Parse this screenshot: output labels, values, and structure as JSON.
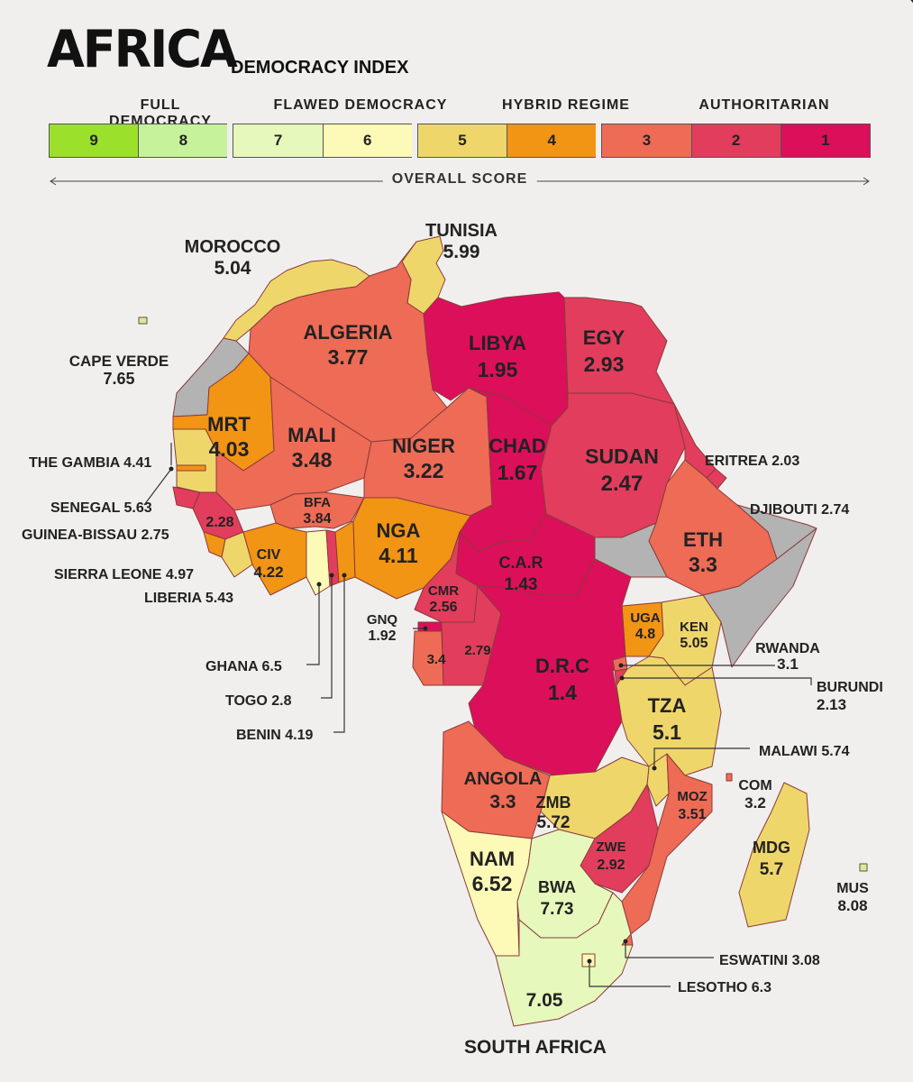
{
  "title": "AFRICA",
  "subtitle": "DEMOCRACY INDEX",
  "legend": {
    "categories": [
      "FULL DEMOCRACY",
      "FLAWED DEMOCRACY",
      "HYBRID REGIME",
      "AUTHORITARIAN"
    ],
    "scale": [
      {
        "label": "9",
        "color": "#9be02a"
      },
      {
        "label": "8",
        "color": "#c6f29c"
      },
      {
        "label": "7",
        "color": "#e6f8bb"
      },
      {
        "label": "6",
        "color": "#fdfab7"
      },
      {
        "label": "5",
        "color": "#efd66b"
      },
      {
        "label": "4",
        "color": "#f29414"
      },
      {
        "label": "3",
        "color": "#ee6b56"
      },
      {
        "label": "2",
        "color": "#e23d5c"
      },
      {
        "label": "1",
        "color": "#dc0f5a"
      }
    ],
    "axis_label": "OVERALL SCORE"
  },
  "countries": [
    {
      "name": "MOROCCO",
      "score": "5.04",
      "color": "#efd66b"
    },
    {
      "name": "TUNISIA",
      "score": "5.99",
      "color": "#efd66b"
    },
    {
      "name": "ALGERIA",
      "score": "3.77",
      "color": "#ee6b56"
    },
    {
      "name": "LIBYA",
      "score": "1.95",
      "color": "#dc0f5a"
    },
    {
      "name": "EGY",
      "score": "2.93",
      "color": "#e23d5c"
    },
    {
      "name": "CAPE VERDE",
      "score": "7.65",
      "color": "#c6f29c"
    },
    {
      "name": "MRT",
      "score": "4.03",
      "color": "#f29414"
    },
    {
      "name": "MALI",
      "score": "3.48",
      "color": "#ee6b56"
    },
    {
      "name": "NIGER",
      "score": "3.22",
      "color": "#ee6b56"
    },
    {
      "name": "CHAD",
      "score": "1.67",
      "color": "#dc0f5a"
    },
    {
      "name": "SUDAN",
      "score": "2.47",
      "color": "#e23d5c"
    },
    {
      "name": "ERITREA",
      "score": "2.03",
      "color": "#e23d5c"
    },
    {
      "name": "THE GAMBIA",
      "score": "4.41",
      "color": "#f29414"
    },
    {
      "name": "SENEGAL",
      "score": "5.63",
      "color": "#efd66b"
    },
    {
      "name": "GUINEA-BISSAU",
      "score": "2.75",
      "color": "#e23d5c"
    },
    {
      "name": "",
      "score": "2.28",
      "color": "#e23d5c"
    },
    {
      "name": "BFA",
      "score": "3.84",
      "color": "#ee6b56"
    },
    {
      "name": "DJIBOUTI",
      "score": "2.74",
      "color": "#e23d5c"
    },
    {
      "name": "SIERRA LEONE",
      "score": "4.97",
      "color": "#f29414"
    },
    {
      "name": "LIBERIA",
      "score": "5.43",
      "color": "#efd66b"
    },
    {
      "name": "CIV",
      "score": "4.22",
      "color": "#f29414"
    },
    {
      "name": "NGA",
      "score": "4.11",
      "color": "#f29414"
    },
    {
      "name": "ETH",
      "score": "3.3",
      "color": "#ee6b56"
    },
    {
      "name": "C.A.R",
      "score": "1.43",
      "color": "#dc0f5a"
    },
    {
      "name": "CMR",
      "score": "2.56",
      "color": "#e23d5c"
    },
    {
      "name": "GNQ",
      "score": "1.92",
      "color": "#dc0f5a"
    },
    {
      "name": "UGA",
      "score": "4.8",
      "color": "#f29414"
    },
    {
      "name": "KEN",
      "score": "5.05",
      "color": "#efd66b"
    },
    {
      "name": "",
      "score": "3.4",
      "color": "#ee6b56"
    },
    {
      "name": "",
      "score": "2.79",
      "color": "#e23d5c"
    },
    {
      "name": "D.R.C",
      "score": "1.4",
      "color": "#dc0f5a"
    },
    {
      "name": "RWANDA",
      "score": "3.1",
      "color": "#ee6b56"
    },
    {
      "name": "GHANA",
      "score": "6.5",
      "color": "#fdfab7"
    },
    {
      "name": "BURUNDI",
      "score": "2.13",
      "color": "#e23d5c"
    },
    {
      "name": "TOGO",
      "score": "2.8",
      "color": "#e23d5c"
    },
    {
      "name": "TZA",
      "score": "5.1",
      "color": "#efd66b"
    },
    {
      "name": "BENIN",
      "score": "4.19",
      "color": "#f29414"
    },
    {
      "name": "MALAWI",
      "score": "5.74",
      "color": "#efd66b"
    },
    {
      "name": "ANGOLA",
      "score": "3.3",
      "color": "#ee6b56"
    },
    {
      "name": "COM",
      "score": "3.2",
      "color": "#ee6b56"
    },
    {
      "name": "ZMB",
      "score": "5.72",
      "color": "#efd66b"
    },
    {
      "name": "MOZ",
      "score": "3.51",
      "color": "#ee6b56"
    },
    {
      "name": "MDG",
      "score": "5.7",
      "color": "#efd66b"
    },
    {
      "name": "ZWE",
      "score": "2.92",
      "color": "#e23d5c"
    },
    {
      "name": "NAM",
      "score": "6.52",
      "color": "#fdfab7"
    },
    {
      "name": "BWA",
      "score": "7.73",
      "color": "#e6f8bb"
    },
    {
      "name": "MUS",
      "score": "8.08",
      "color": "#c6f29c"
    },
    {
      "name": "ESWATINI",
      "score": "3.08",
      "color": "#ee6b56"
    },
    {
      "name": "LESOTHO",
      "score": "6.3",
      "color": "#fdfab7"
    },
    {
      "name": "SOUTH AFRICA",
      "score": "7.05",
      "color": "#e6f8bb"
    }
  ],
  "no_data_color": "#b3b3b3"
}
